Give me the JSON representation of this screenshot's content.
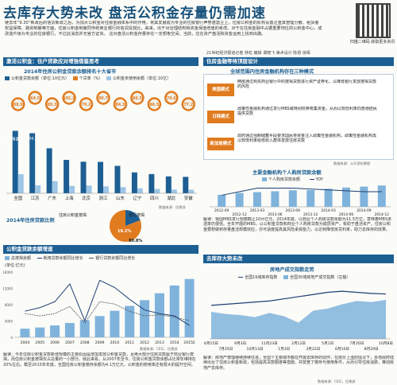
{
  "headline": "去库存大势未改 盘活公积金存量仍需加速",
  "intro": "继去年“9.30”新政后的信贷新政之后，为加大公积金对住房金融体系中的作用，将其发展成为专业的住房银行声势甚嚣尘上。住房公积金的机构设置注重其管理分散、租赁者权益保障、融资制度等方面，住房公积金制度同传统商业银行的信贷投放比，来来。出于对治理结构和资金保值增值的考虑，对于在住房金融中占据重要地位的公积金中心，成改造升级为专业的住房银行，不过此消息并无官方证实。",
  "intro2": "这对盘活公积金存量存在一定想象空间。当前，应在资产盘活和资金运用上找到出路。",
  "qr_caption": "扫描二维码 获取更多资讯",
  "byline": "21世纪经济报道记者 林虹 编辑 谭丽飞 美术设计 陈禧 徐晖",
  "left_section": "激活公积金：住户贷款应对增强借鉴思考",
  "right_section": "住房金融等待顶层设计",
  "right_bottom_section": "去库存大势未改",
  "panel1": {
    "title": "2014年住房公积金贷款余额排名十大省市",
    "legend": [
      "公积金贷款余额（单位:10亿元）",
      "个贷率（%）",
      "公积金未使用余额（单位:10亿）"
    ],
    "source": "数据来源：住建部"
  },
  "pie": {
    "title": "2014年住房贷款比例",
    "labels": [
      "住房公积金按揭",
      "银行按揭"
    ],
    "values": [
      "19.2%",
      "80.8%"
    ]
  },
  "panel2": {
    "title": "公积金贷款余额增速",
    "legend": [
      "总按揭余额",
      "耗用贷款余额同比增长",
      "银行贷款余额同比增长"
    ],
    "yunit": "(单位:亿元)",
    "note": "解读：今年住房公积金贷款新增规模的主要原因是增加发放公积金贷款，且绝大部分住房贷款属于商业银行按揭，而住房公积金按揭仅占总量的一小部分。就此来看，从2007年至今，住房公积金贷款余额占比常年维持在20%左右。截至2015年年底，全国住房公积金缴存余额为4.1万亿元，公积金的使用率还有很大的提升空间。",
    "source": "数据来源：CEIC，住建部"
  },
  "reform": {
    "title": "全球范围内住房金融机构存在三种模式",
    "rows": [
      {
        "tag": "美国模式",
        "text": "两房通过购买商业银行中的按揭贷款进行资产证券化，以降低银行发放按揭贷款的风险"
      },
      {
        "tag": "日韩模式",
        "text": "政策性金融机构通过发行MBS或特别债券筹集资金，从而以较低利率向普通居民提供贷款"
      },
      {
        "tag": "新加坡模式",
        "text": "政府通过强制储蓄手段要求国民将资金注入政策性金融机构，政策性金融机构再以较低利率给低收入群体发放住房贷款"
      }
    ],
    "source": "数据来源：公开资料整理"
  },
  "mortgage": {
    "title": "主要金融机构个人购房贷款余额",
    "legend": [
      "个人购房贷款余额",
      "YOY"
    ],
    "note": "解读：我国MBS发行规模截止10月亿元，2014年底，以商业个人购房贷款余额为11.5万亿，意味着MBS渗透率仍很低。全年开展的MBS，以公积金贷款和商业个人购房贷款为底层资产，有助于盘活资产。住房公积金要想做到存量盘活规模效应，亦可适度提高其风险承受能力，以达到降低房贷利率，助力去库存的效果。"
  },
  "housing": {
    "title": "房地产成交指数走势",
    "legend": [
      "全国19城库存指数",
      "全国30城房地产成交指数（左轴）"
    ],
    "note": "解读：房地产按理继续持续住进，全国个主要城市都在开展去库存的动作，在房价上涨的情况下，多地政府陆续出台了住房公积金新政，包括提高贷款额度等措施，并放宽了缴存与使用条件，从而引导住房消费，推动房地产去库存。"
  },
  "footnote": "数据来源：CEIC，住建部",
  "chart_data": [
    {
      "type": "bar",
      "title": "2014年住房公积金贷款余额排名十大省市",
      "categories": [
        "全国",
        "江苏",
        "广东",
        "上海",
        "北京",
        "浙江",
        "山东",
        "辽宁",
        "四川",
        "湖北",
        "安徽"
      ],
      "series": [
        {
          "name": "公积金贷款余额（单位:10亿元）",
          "values": [
            2552.2,
            198.2,
            148.6,
            110.3,
            104.2,
            103.7,
            90.5,
            68.9,
            63.4,
            55.8,
            54.2
          ]
        },
        {
          "name": "公积金未使用余额（单位:10亿）",
          "values": [
            782.5,
            26.4,
            40.1,
            24.2,
            25.7,
            23.1,
            20.3,
            16.5,
            14.2,
            12.4,
            11.8
          ]
        }
      ],
      "rates": [
        88.9,
        64.5,
        85.3,
        101.8,
        79.2,
        86.7,
        84.3,
        86.5,
        86.5,
        79.6,
        77.2
      ],
      "ylim": [
        0,
        2600
      ]
    },
    {
      "type": "pie",
      "title": "2014年住房贷款比例",
      "labels": [
        "住房公积金按揭",
        "银行按揭"
      ],
      "values": [
        19.2,
        80.8
      ]
    },
    {
      "type": "bar",
      "title": "公积金贷款余额增速",
      "categories": [
        "2004",
        "2005",
        "2006",
        "2007",
        "2008",
        "2009",
        "2010",
        "2011",
        "2012",
        "2013",
        "2014",
        "2015E"
      ],
      "series": [
        {
          "name": "总按揭余额",
          "values": [
            2100,
            2400,
            2900,
            3500,
            4200,
            5200,
            6500,
            7700,
            9100,
            10800,
            12700,
            14300
          ]
        },
        {
          "name": "耗用贷款余额同比增长",
          "values": [
            22,
            25,
            30,
            45,
            14,
            48,
            42,
            32,
            23,
            20,
            18,
            10
          ]
        },
        {
          "name": "银行贷款余额同比增长",
          "values": [
            20,
            18,
            20,
            26,
            12,
            30,
            28,
            22,
            18,
            19,
            17,
            14
          ]
        }
      ],
      "ylim": [
        0,
        16000
      ]
    },
    {
      "type": "bar",
      "title": "主要金融机构个人购房贷款余额",
      "categories": [
        "2012-09",
        "2012-12",
        "2013-03",
        "2013-06",
        "2013-09",
        "2013-12",
        "2014-03",
        "2014-06",
        "2014-09",
        "2014-12"
      ],
      "series": [
        {
          "name": "个人购房贷款余额",
          "values": [
            6.5,
            7.5,
            7.9,
            8.4,
            8.9,
            9.0,
            9.7,
            10.4,
            10.9,
            11.5
          ]
        },
        {
          "name": "YOY",
          "values": [
            13,
            17,
            21,
            21,
            21,
            20,
            19,
            18,
            17,
            17
          ]
        }
      ],
      "ylim": [
        0,
        12
      ]
    },
    {
      "type": "line",
      "title": "房地产成交指数走势",
      "categories": [
        "6月15日",
        "7月25日",
        "9月3日",
        "10月13日",
        "11月23日",
        "1月3日",
        "2月12日",
        "3月22日",
        "5月1日",
        "6月10日",
        "7月20日",
        "8月29日",
        "10月8日"
      ],
      "series": [
        {
          "name": "全国19城库存指数",
          "values": [
            62,
            64,
            66,
            68,
            70,
            74,
            78,
            82,
            86,
            88,
            86,
            84,
            83
          ]
        },
        {
          "name": "全国30城房地产成交指数（左轴）",
          "values": [
            50,
            46,
            44,
            40,
            48,
            42,
            30,
            52,
            56,
            64,
            70,
            68,
            72
          ]
        }
      ]
    }
  ]
}
